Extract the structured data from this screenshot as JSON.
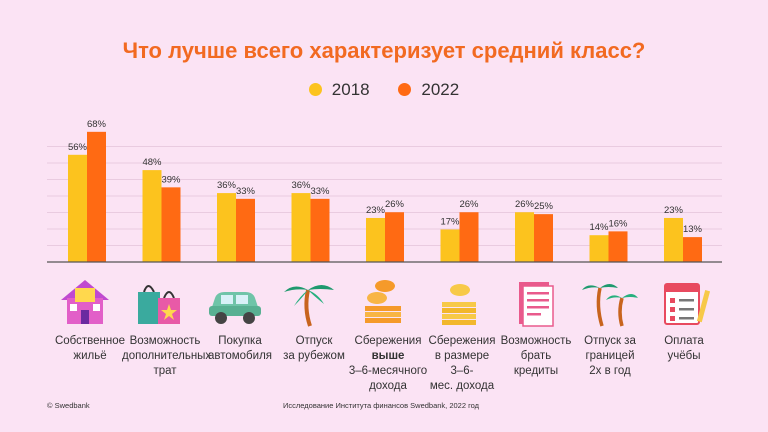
{
  "colors": {
    "s2018": "#fcc31e",
    "s2022": "#ff6a13",
    "title": "#f26a21",
    "grid": "#e9cbe0"
  },
  "chart_data": {
    "type": "bar",
    "title": "Что лучше всего характеризует средний класс?",
    "categories": [
      "Собственное жильё",
      "Возможность дополнительных трат",
      "Покупка автомобиля",
      "Отпуск за рубежом",
      "Сбережения выше 3–6-месячного дохода",
      "Сбережения в размере 3–6-мес. дохода",
      "Возможность брать кредиты",
      "Отпуск за границей 2х в год",
      "Оплата учёбы"
    ],
    "series": [
      {
        "name": "2018",
        "values": [
          56,
          48,
          36,
          36,
          23,
          17,
          26,
          14,
          23
        ]
      },
      {
        "name": "2022",
        "values": [
          68,
          39,
          33,
          33,
          26,
          26,
          25,
          16,
          13
        ]
      }
    ],
    "value_suffix": "%",
    "ylim": [
      0,
      70
    ],
    "grid": true,
    "legend_position": "top-center"
  },
  "categories_display": [
    {
      "lines": [
        "Собственное",
        "жильё"
      ]
    },
    {
      "lines": [
        "Возможность",
        "дополнительных",
        "трат"
      ]
    },
    {
      "lines": [
        "Покупка",
        "автомобиля"
      ]
    },
    {
      "lines": [
        "Отпуск",
        "за рубежом"
      ]
    },
    {
      "pre": "Сбережения",
      "bold": "выше",
      "post1": "3–6-месячного",
      "post2": "дохода"
    },
    {
      "lines": [
        "Сбережения",
        "в размере",
        "3–6-",
        "мес. дохода"
      ]
    },
    {
      "lines": [
        "Возможность",
        "брать",
        "кредиты"
      ]
    },
    {
      "lines": [
        "Отпуск за",
        "границей",
        "2х в год"
      ]
    },
    {
      "lines": [
        "Оплата",
        "учёбы"
      ]
    }
  ],
  "icons": [
    "house-icon",
    "shopping-bags-icon",
    "car-icon",
    "palm-tree-icon",
    "coin-stack-icon",
    "coins-icon",
    "document-icon",
    "palm-trees-icon",
    "planner-icon"
  ],
  "footer": {
    "left": "© Swedbank",
    "center": "Исследование Института финансов Swedbank, 2022 год"
  }
}
